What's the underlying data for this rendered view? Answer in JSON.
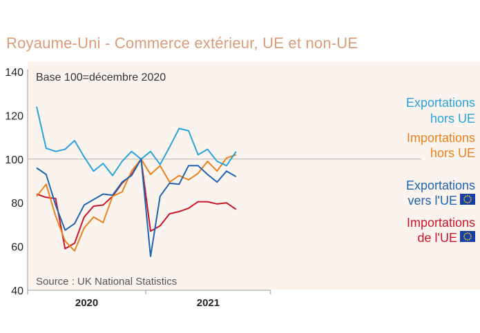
{
  "chart_data": {
    "type": "line",
    "title": "Royaume-Uni - Commerce extérieur, UE et non-UE",
    "subtitle": "Base 100=décembre 2020",
    "source": "Source : UK National Statistics",
    "xlabel": "",
    "ylabel": "",
    "ylim": [
      40,
      140
    ],
    "yticks": [
      40,
      60,
      80,
      100,
      120,
      140
    ],
    "reference_line": 100,
    "categories": [
      "2020-01",
      "2020-02",
      "2020-03",
      "2020-04",
      "2020-05",
      "2020-06",
      "2020-07",
      "2020-08",
      "2020-09",
      "2020-10",
      "2020-11",
      "2020-12",
      "2021-01",
      "2021-02",
      "2021-03",
      "2021-04",
      "2021-05",
      "2021-06",
      "2021-07",
      "2021-08",
      "2021-09",
      "2021-10"
    ],
    "year_labels": [
      {
        "label": "2020",
        "start": 0,
        "end": 11
      },
      {
        "label": "2021",
        "start": 12,
        "end": 21
      }
    ],
    "series": [
      {
        "name": "Exportations hors UE",
        "label_lines": [
          "Exportations",
          "hors UE"
        ],
        "color": "#29a3d9",
        "eu_flag": false,
        "values": [
          124,
          105,
          103.5,
          104.5,
          108.5,
          101,
          94.5,
          98,
          92.5,
          99,
          103.5,
          100,
          103.5,
          97.5,
          105.5,
          114,
          113,
          102,
          104.5,
          99,
          97,
          103.5
        ]
      },
      {
        "name": "Importations hors UE",
        "label_lines": [
          "Importations",
          "hors UE"
        ],
        "color": "#e8821e",
        "eu_flag": false,
        "values": [
          83,
          88.5,
          74,
          62.5,
          58,
          68.5,
          73.5,
          71,
          83,
          85,
          94.5,
          100,
          93,
          97,
          89.5,
          92.5,
          90.5,
          93.5,
          99,
          94.5,
          100.5,
          102
        ]
      },
      {
        "name": "Exportations vers l'UE",
        "label_lines": [
          "Exportations",
          "vers l'UE"
        ],
        "color": "#1f63b0",
        "eu_flag": true,
        "values": [
          96,
          93,
          79,
          67.5,
          70.5,
          79,
          81.5,
          84,
          83.5,
          89.5,
          92.5,
          100,
          55.5,
          83,
          89,
          88.5,
          97,
          97,
          93,
          89.5,
          94.5,
          92
        ]
      },
      {
        "name": "Importations de l'UE",
        "label_lines": [
          "Importations",
          "de l'UE"
        ],
        "color": "#c8152b",
        "eu_flag": true,
        "values": [
          84,
          82.5,
          82,
          59,
          61.5,
          73.5,
          78.5,
          79,
          83,
          89,
          93,
          100,
          67,
          69.5,
          75,
          76,
          77.5,
          80.5,
          80.5,
          79.5,
          80,
          77
        ]
      }
    ]
  }
}
